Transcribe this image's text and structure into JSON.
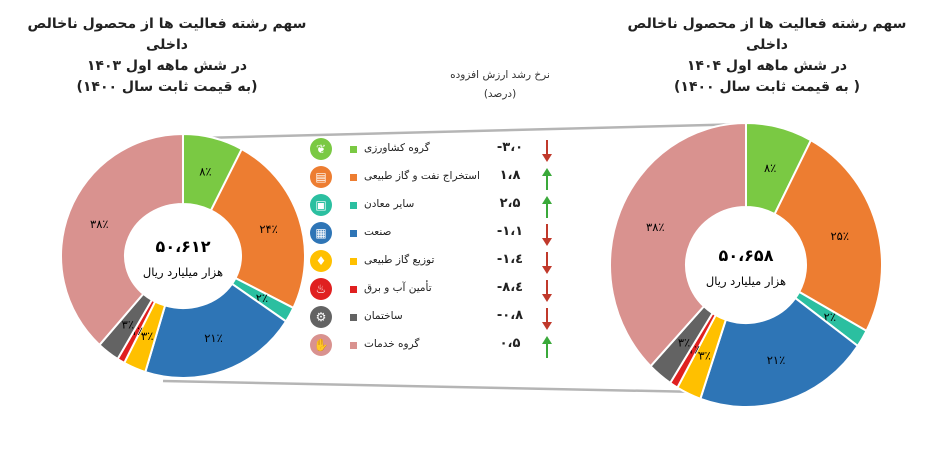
{
  "titles": {
    "left": [
      "سهم رشته فعالیت ها از محصول ناخالص داخلی",
      "در شش ماهه اول ۱۴۰۳",
      "(به قیمت ثابت سال ۱۴۰۰)"
    ],
    "right": [
      "سهم رشته فعالیت ها از محصول ناخالص داخلی",
      "در شش ماهه اول ۱۴۰۴",
      "( به قیمت ثابت سال ۱۴۰۰)"
    ]
  },
  "growth_header": [
    "نرخ رشد ارزش افزوده",
    "(درصد)"
  ],
  "center": {
    "left": {
      "value": "۵۰،۶۱۲",
      "unit": "هزار میلیارد ریال"
    },
    "right": {
      "value": "۵۰،۶۵۸",
      "unit": "هزار میلیارد ریال"
    }
  },
  "colors": {
    "agriculture": "#7ac943",
    "oil_gas": "#ed7d31",
    "mining": "#2bbfa0",
    "industry": "#2e75b6",
    "gas_distribution": "#ffc000",
    "water_electricity": "#e02020",
    "construction": "#636363",
    "services": "#d9928f",
    "arrow_up": "#3aa93a",
    "arrow_down": "#c0392b"
  },
  "chart_data": [
    {
      "type": "pie",
      "title": "سهم رشته فعالیت ها از محصول ناخالص داخلی در شش ماهه اول ۱۴۰۳ (به قیمت ثابت سال ۱۴۰۰)",
      "total": "۵۰،۶۱۲",
      "unit": "هزار میلیارد ریال",
      "categories": [
        "گروه کشاورزی",
        "استخراج نفت و گاز طبیعی",
        "سایر معادن",
        "صنعت",
        "توزیع گاز طبیعی",
        "تأمین آب و برق",
        "ساختمان",
        "گروه خدمات"
      ],
      "values": [
        8,
        24,
        2,
        21,
        3,
        1,
        3,
        38
      ],
      "labels": [
        "۸٪",
        "۲۴٪",
        "۲٪",
        "۲۱٪",
        "۳٪",
        "۱٪",
        "۳٪",
        "۳۸٪"
      ]
    },
    {
      "type": "pie",
      "title": "سهم رشته فعالیت ها از محصول ناخالص داخلی در شش ماهه اول ۱۴۰۴ ( به قیمت ثابت سال ۱۴۰۰)",
      "total": "۵۰،۶۵۸",
      "unit": "هزار میلیارد ریال",
      "categories": [
        "گروه کشاورزی",
        "استخراج نفت و گاز طبیعی",
        "سایر معادن",
        "صنعت",
        "توزیع گاز طبیعی",
        "تأمین آب و برق",
        "ساختمان",
        "گروه خدمات"
      ],
      "values": [
        8,
        25,
        2,
        21,
        3,
        1,
        3,
        38
      ],
      "labels": [
        "۸٪",
        "۲۵٪",
        "۲٪",
        "۲۱٪",
        "۳٪",
        "۱٪",
        "۳٪",
        "۳۸٪"
      ]
    },
    {
      "type": "table",
      "title": "نرخ رشد ارزش افزوده (درصد)",
      "categories": [
        "گروه کشاورزی",
        "استخراج نفت و گاز طبیعی",
        "سایر معادن",
        "صنعت",
        "توزیع گاز طبیعی",
        "تأمین آب و برق",
        "ساختمان",
        "گروه خدمات"
      ],
      "values": [
        -3.0,
        1.8,
        2.5,
        -1.1,
        -1.4,
        -8.4,
        -0.8,
        0.5
      ],
      "labels": [
        "-۳،۰",
        "۱،۸",
        "۲،۵",
        "-۱،۱",
        "-۱،٤",
        "-۸،٤",
        "-۰،۸",
        "۰،۵"
      ]
    }
  ],
  "legend": [
    {
      "label": "گروه کشاورزی",
      "value": "-۳،۰",
      "color_key": "agriculture",
      "direction": "down",
      "icon": "wheat-icon"
    },
    {
      "label": "استخراج نفت و گاز طبیعی",
      "value": "۱،۸",
      "color_key": "oil_gas",
      "direction": "up",
      "icon": "oil-barrel-icon"
    },
    {
      "label": "سایر معادن",
      "value": "۲،۵",
      "color_key": "mining",
      "direction": "up",
      "icon": "mine-cart-icon"
    },
    {
      "label": "صنعت",
      "value": "-۱،۱",
      "color_key": "industry",
      "direction": "down",
      "icon": "factory-icon"
    },
    {
      "label": "توزیع گاز طبیعی",
      "value": "-۱،٤",
      "color_key": "gas_distribution",
      "direction": "down",
      "icon": "gas-flame-icon"
    },
    {
      "label": "تأمین آب و برق",
      "value": "-۸،٤",
      "color_key": "water_electricity",
      "direction": "down",
      "icon": "lightbulb-icon"
    },
    {
      "label": "ساختمان",
      "value": "-۰،۸",
      "color_key": "construction",
      "direction": "down",
      "icon": "construction-icon"
    },
    {
      "label": "گروه خدمات",
      "value": "۰،۵",
      "color_key": "services",
      "direction": "up",
      "icon": "service-hand-icon"
    }
  ]
}
